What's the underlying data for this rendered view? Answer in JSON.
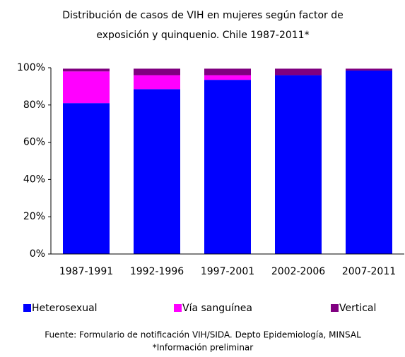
{
  "chart_data": {
    "type": "stacked_bar",
    "title": [
      "Distribución de casos de VIH en mujeres según factor de",
      "exposición y quinquenio. Chile 1987-2011*"
    ],
    "categories": [
      "1987-1991",
      "1992-1996",
      "1997-2001",
      "2002-2006",
      "2007-2011"
    ],
    "series": [
      {
        "name": "Heterosexual",
        "color": "#0000ff",
        "values": [
          81,
          88.5,
          93.5,
          96,
          98.5
        ]
      },
      {
        "name": "Vía sanguínea",
        "color": "#ff00ff",
        "values": [
          17,
          7.5,
          2.5,
          0,
          0
        ]
      },
      {
        "name": "Vertical",
        "color": "#800080",
        "values": [
          1.5,
          3.5,
          3.5,
          3.5,
          1
        ]
      }
    ],
    "ylim": [
      0,
      100
    ],
    "yticks": [
      {
        "value": 0,
        "label": "0%"
      },
      {
        "value": 20,
        "label": "20%"
      },
      {
        "value": 40,
        "label": "40%"
      },
      {
        "value": 60,
        "label": "60%"
      },
      {
        "value": 80,
        "label": "80%"
      },
      {
        "value": 100,
        "label": "100%"
      }
    ],
    "legend": "bottom",
    "source": "Fuente: Formulario de notificación VIH/SIDA. Depto Epidemiología, MINSAL",
    "note": "*Información preliminar"
  }
}
